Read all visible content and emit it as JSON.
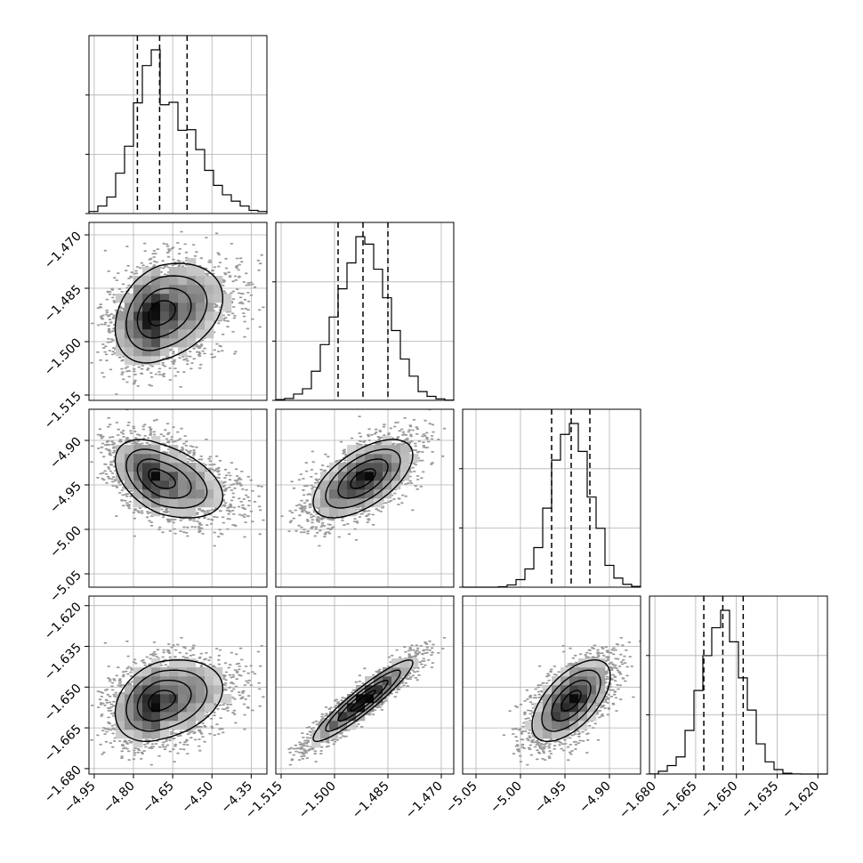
{
  "chart_data": {
    "type": "corner",
    "grid": true,
    "parameters": [
      {
        "name": "",
        "range": [
          -4.97,
          -4.29
        ],
        "ticks": [
          -4.95,
          -4.8,
          -4.65,
          -4.5,
          -4.35
        ],
        "tick_labels": [
          "−4.95",
          "−4.80",
          "−4.65",
          "−4.50",
          "−4.35"
        ],
        "quantiles": [
          -4.785,
          -4.7,
          -4.595
        ],
        "sigma": 0.085,
        "skew": 0.6
      },
      {
        "name": "",
        "range": [
          -1.5165,
          -1.4665
        ],
        "ticks": [
          -1.515,
          -1.5,
          -1.485,
          -1.47
        ],
        "tick_labels": [
          "−1.515",
          "−1.500",
          "−1.485",
          "−1.470"
        ],
        "quantiles": [
          -1.499,
          -1.492,
          -1.485
        ],
        "sigma": 0.007,
        "skew": 0
      },
      {
        "name": "",
        "range": [
          -5.065,
          -4.865
        ],
        "ticks": [
          -5.05,
          -5.0,
          -4.95,
          -4.9
        ],
        "tick_labels": [
          "−5.05",
          "−5.00",
          "−4.95",
          "−4.90"
        ],
        "quantiles": [
          -4.965,
          -4.943,
          -4.922
        ],
        "sigma": 0.022,
        "skew": 0
      },
      {
        "name": "",
        "range": [
          -1.682,
          -1.6165
        ],
        "ticks": [
          -1.68,
          -1.665,
          -1.65,
          -1.635,
          -1.62
        ],
        "tick_labels": [
          "−1.680",
          "−1.665",
          "−1.650",
          "−1.635",
          "−1.620"
        ],
        "quantiles": [
          -1.662,
          -1.655,
          -1.6475
        ],
        "sigma": 0.0075,
        "skew": 0
      }
    ],
    "correlations": [
      [
        1.0,
        0.3,
        -0.45,
        0.3
      ],
      [
        0.3,
        1.0,
        0.6,
        0.93
      ],
      [
        -0.45,
        0.6,
        1.0,
        0.6
      ],
      [
        0.3,
        0.93,
        0.6,
        1.0
      ]
    ],
    "quantile_levels": [
      0.16,
      0.5,
      0.84
    ]
  }
}
